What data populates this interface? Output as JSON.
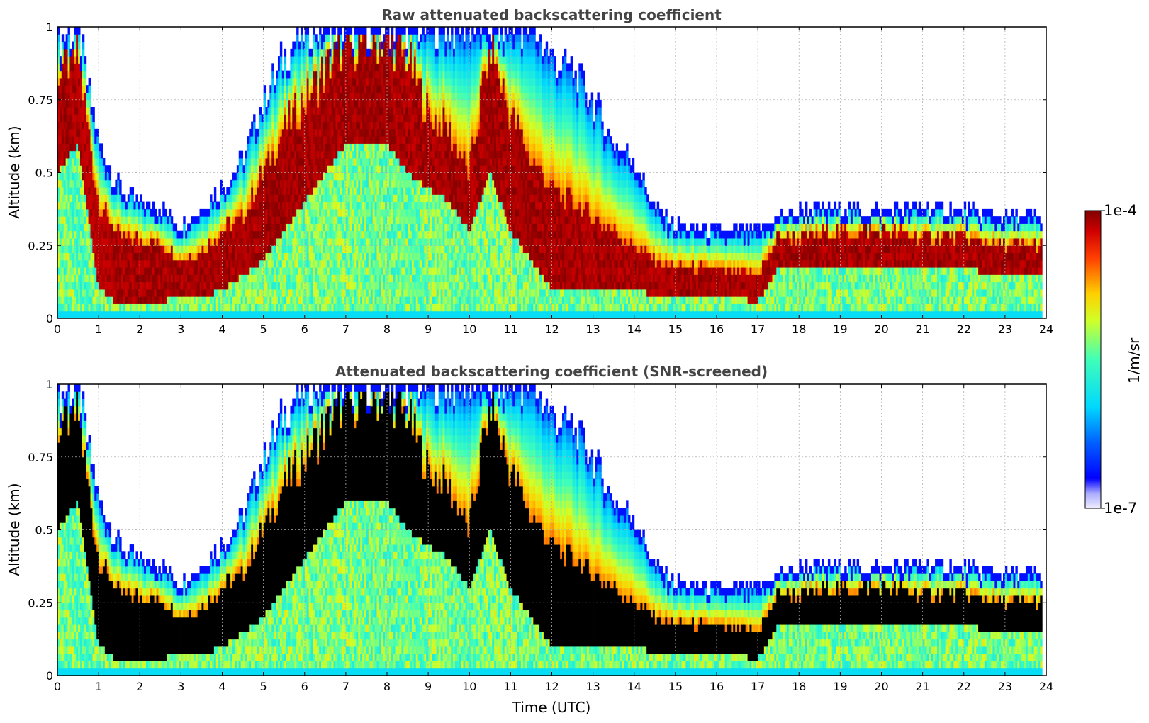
{
  "figure": {
    "xlabel": "Time (UTC)",
    "colorbar": {
      "label": "1/m/sr",
      "max_label": "1e-4",
      "min_label": "1e-7",
      "range": [
        1e-07,
        0.0001
      ],
      "scale": "log",
      "colormap": "jet"
    }
  },
  "chart_data": [
    {
      "type": "heatmap",
      "title": "Raw attenuated backscattering coefficient",
      "xlabel": "",
      "ylabel": "Altitude (km)",
      "xlim": [
        0,
        24
      ],
      "ylim": [
        0,
        1
      ],
      "x_ticks": [
        "0",
        "1",
        "2",
        "3",
        "4",
        "5",
        "6",
        "7",
        "8",
        "9",
        "10",
        "11",
        "12",
        "13",
        "14",
        "15",
        "16",
        "17",
        "18",
        "19",
        "20",
        "21",
        "22",
        "23",
        "24"
      ],
      "y_ticks": [
        "0",
        "0.25",
        "0.5",
        "0.75",
        "1"
      ],
      "grid": true,
      "z_units": "1/m/sr",
      "z_scale": "log",
      "layer_profile": {
        "time_utc": [
          0.0,
          0.5,
          1.0,
          1.5,
          2.0,
          2.5,
          3.0,
          3.5,
          4.0,
          4.5,
          5.0,
          5.5,
          6.0,
          6.5,
          7.0,
          7.5,
          8.0,
          8.5,
          9.0,
          9.5,
          10.0,
          10.5,
          11.0,
          11.5,
          12.0,
          12.5,
          13.0,
          13.5,
          14.0,
          14.5,
          15.0,
          16.0,
          17.0,
          17.5,
          18.0,
          19.0,
          20.0,
          21.0,
          22.0,
          23.0,
          23.9
        ],
        "top_km": [
          0.95,
          1.0,
          0.6,
          0.45,
          0.4,
          0.38,
          0.32,
          0.38,
          0.45,
          0.55,
          0.75,
          0.9,
          1.0,
          1.0,
          1.0,
          1.0,
          1.0,
          1.0,
          1.0,
          1.0,
          1.0,
          1.0,
          1.0,
          1.0,
          0.9,
          0.85,
          0.75,
          0.6,
          0.55,
          0.38,
          0.32,
          0.3,
          0.3,
          0.35,
          0.37,
          0.38,
          0.37,
          0.38,
          0.37,
          0.35,
          0.35
        ],
        "core_top_km": [
          0.85,
          0.9,
          0.4,
          0.28,
          0.27,
          0.26,
          0.2,
          0.23,
          0.3,
          0.35,
          0.5,
          0.65,
          0.75,
          0.85,
          0.95,
          0.95,
          0.95,
          0.9,
          0.7,
          0.65,
          0.5,
          0.95,
          0.7,
          0.55,
          0.45,
          0.4,
          0.35,
          0.3,
          0.25,
          0.2,
          0.18,
          0.17,
          0.15,
          0.28,
          0.28,
          0.3,
          0.3,
          0.28,
          0.28,
          0.25,
          0.25
        ],
        "core_base_km": [
          0.5,
          0.6,
          0.1,
          0.05,
          0.05,
          0.06,
          0.07,
          0.07,
          0.1,
          0.15,
          0.2,
          0.3,
          0.4,
          0.5,
          0.6,
          0.6,
          0.6,
          0.5,
          0.45,
          0.4,
          0.3,
          0.5,
          0.3,
          0.2,
          0.1,
          0.1,
          0.1,
          0.1,
          0.1,
          0.08,
          0.07,
          0.07,
          0.06,
          0.17,
          0.17,
          0.18,
          0.18,
          0.17,
          0.17,
          0.15,
          0.15
        ]
      }
    },
    {
      "type": "heatmap",
      "title": "Attenuated backscattering coefficient (SNR-screened)",
      "xlabel": "Time (UTC)",
      "ylabel": "Altitude (km)",
      "xlim": [
        0,
        24
      ],
      "ylim": [
        0,
        1
      ],
      "x_ticks": [
        "0",
        "1",
        "2",
        "3",
        "4",
        "5",
        "6",
        "7",
        "8",
        "9",
        "10",
        "11",
        "12",
        "13",
        "14",
        "15",
        "16",
        "17",
        "18",
        "19",
        "20",
        "21",
        "22",
        "23",
        "24"
      ],
      "y_ticks": [
        "0",
        "0.25",
        "0.5",
        "0.75",
        "1"
      ],
      "grid": true,
      "z_units": "1/m/sr",
      "z_scale": "log",
      "screened_color": "#000000"
    }
  ]
}
